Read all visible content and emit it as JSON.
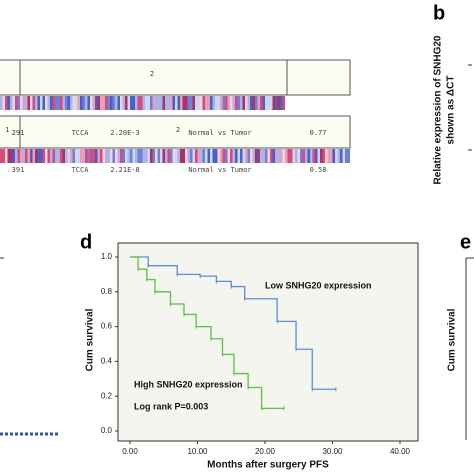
{
  "fragments": {
    "panel_b": {
      "letter": "b",
      "axis_label_1": "Relative expression of SNHG20",
      "axis_label_2": "shown as ΔCT"
    },
    "panel_e": {
      "letter": "e",
      "axis_label": "Cum survival"
    },
    "rows": [
      {
        "group": "2",
        "cells": [
          "291",
          "TCCA",
          "2.20E-3",
          "Normal vs Tumor",
          "0.77"
        ]
      },
      {
        "subgroup": "1",
        "group": "2",
        "cells": [
          "391",
          "TCCA",
          "2.21E-8",
          "Normal vs Tumor",
          "0.58"
        ]
      }
    ]
  },
  "chart_data": {
    "type": "step",
    "letter": "d",
    "xlabel": "Months after surgery PFS",
    "ylabel": "Cum survival",
    "xlim": [
      -1.5,
      42
    ],
    "ylim": [
      -0.03,
      1.06
    ],
    "xticks": [
      {
        "value": 0,
        "label": "0.00"
      },
      {
        "value": 10,
        "label": "10.00"
      },
      {
        "value": 20,
        "label": "20.00"
      },
      {
        "value": 30,
        "label": "30.00"
      },
      {
        "value": 40,
        "label": "40.00"
      }
    ],
    "yticks": [
      {
        "value": 0,
        "label": "0.0"
      },
      0.2,
      0.4,
      0.6,
      0.8,
      {
        "value": 1,
        "label": "1.0"
      }
    ],
    "annotation": "Log rank P=0.003",
    "series": [
      {
        "name": "Low SNHG20 expression",
        "color": "#5b8fd6",
        "x": [
          0,
          2.7,
          7,
          10.4,
          12.8,
          15,
          17,
          21.8,
          24.6,
          27,
          30.5
        ],
        "values": [
          1,
          0.95,
          0.9,
          0.89,
          0.86,
          0.83,
          0.76,
          0.63,
          0.47,
          0.24,
          0.24
        ]
      },
      {
        "name": "High SNHG20 expression",
        "color": "#59c244",
        "x": [
          0,
          1.2,
          2.5,
          3.7,
          6,
          8,
          9.8,
          12,
          13.7,
          15.4,
          17.5,
          19.5,
          22.8
        ],
        "values": [
          1,
          0.93,
          0.87,
          0.8,
          0.73,
          0.67,
          0.6,
          0.53,
          0.44,
          0.33,
          0.25,
          0.13,
          0.13
        ]
      }
    ]
  }
}
